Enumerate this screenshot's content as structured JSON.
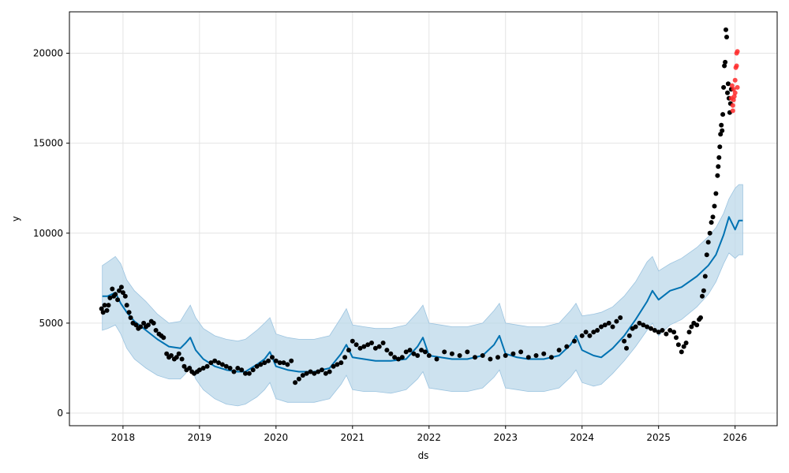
{
  "chart_data": {
    "type": "scatter",
    "xlabel": "ds",
    "ylabel": "y",
    "x_ticks": [
      "2018",
      "2019",
      "2020",
      "2021",
      "2022",
      "2023",
      "2024",
      "2025",
      "2026"
    ],
    "y_ticks": [
      "0",
      "5000",
      "10000",
      "15000",
      "20000"
    ],
    "xlim": [
      2017.3,
      2026.55
    ],
    "ylim": [
      -700,
      22300
    ],
    "grid": true,
    "colors": {
      "observed": "#000000",
      "holdout": "#ff2a2a",
      "forecast_line": "#0072b2",
      "interval_fill": "#bcd8ea",
      "interval_edge": "#9cc4e0",
      "grid": "#e4e4e4",
      "axis": "#000000"
    },
    "series": [
      {
        "role": "forecast",
        "x": [
          2017.73,
          2017.8,
          2017.9,
          2017.97,
          2018.05,
          2018.15,
          2018.3,
          2018.45,
          2018.6,
          2018.75,
          2018.82,
          2018.88,
          2018.95,
          2019.05,
          2019.2,
          2019.35,
          2019.5,
          2019.6,
          2019.75,
          2019.85,
          2019.92,
          2020.0,
          2020.15,
          2020.3,
          2020.5,
          2020.7,
          2020.85,
          2020.92,
          2021.0,
          2021.15,
          2021.3,
          2021.5,
          2021.7,
          2021.85,
          2021.92,
          2022.0,
          2022.15,
          2022.3,
          2022.5,
          2022.7,
          2022.85,
          2022.92,
          2023.0,
          2023.15,
          2023.3,
          2023.5,
          2023.7,
          2023.85,
          2023.92,
          2024.0,
          2024.15,
          2024.25,
          2024.4,
          2024.55,
          2024.7,
          2024.85,
          2024.92,
          2025.0,
          2025.15,
          2025.3,
          2025.5,
          2025.65,
          2025.75,
          2025.85,
          2025.92,
          2026.0,
          2026.05,
          2026.1
        ],
        "upper": [
          8200,
          8400,
          8700,
          8300,
          7400,
          6800,
          6200,
          5500,
          5000,
          5100,
          5600,
          6000,
          5300,
          4700,
          4300,
          4100,
          4000,
          4100,
          4600,
          5000,
          5300,
          4400,
          4200,
          4100,
          4100,
          4300,
          5300,
          5800,
          4900,
          4800,
          4700,
          4700,
          4900,
          5600,
          6000,
          5000,
          4900,
          4800,
          4800,
          5000,
          5700,
          6100,
          5000,
          4900,
          4800,
          4800,
          5000,
          5700,
          6100,
          5400,
          5500,
          5600,
          5900,
          6500,
          7300,
          8400,
          8700,
          7900,
          8300,
          8600,
          9200,
          9800,
          10300,
          11100,
          11900,
          12500,
          12700,
          12700
        ],
        "lower": [
          4600,
          4700,
          4900,
          4400,
          3600,
          3000,
          2500,
          2100,
          1900,
          1900,
          2200,
          2700,
          1900,
          1300,
          800,
          500,
          400,
          500,
          900,
          1300,
          1700,
          800,
          600,
          600,
          600,
          800,
          1600,
          2100,
          1300,
          1200,
          1200,
          1100,
          1300,
          1900,
          2300,
          1400,
          1300,
          1200,
          1200,
          1400,
          2000,
          2400,
          1400,
          1300,
          1200,
          1200,
          1400,
          2000,
          2400,
          1700,
          1500,
          1600,
          2200,
          2900,
          3700,
          4600,
          5000,
          4300,
          4900,
          5200,
          5900,
          6600,
          7300,
          8300,
          8900,
          8600,
          8800,
          8800
        ],
        "yhat": [
          6500,
          6500,
          6700,
          6100,
          5600,
          5100,
          4600,
          4100,
          3700,
          3600,
          3900,
          4200,
          3500,
          3000,
          2600,
          2400,
          2300,
          2300,
          2700,
          3000,
          3400,
          2600,
          2400,
          2300,
          2300,
          2500,
          3300,
          3800,
          3100,
          3000,
          2900,
          2900,
          3000,
          3700,
          4200,
          3200,
          3100,
          3000,
          3000,
          3200,
          3800,
          4300,
          3300,
          3100,
          3000,
          3000,
          3200,
          3800,
          4300,
          3500,
          3200,
          3100,
          3600,
          4300,
          5200,
          6200,
          6800,
          6300,
          6800,
          7000,
          7600,
          8200,
          8800,
          9900,
          10900,
          10200,
          10700,
          10700
        ]
      },
      {
        "name": "observed",
        "role": "observed",
        "x": [
          2017.72,
          2017.74,
          2017.76,
          2017.79,
          2017.81,
          2017.83,
          2017.86,
          2017.88,
          2017.9,
          2017.93,
          2017.95,
          2017.98,
          2018.0,
          2018.03,
          2018.05,
          2018.08,
          2018.1,
          2018.13,
          2018.17,
          2018.2,
          2018.23,
          2018.27,
          2018.3,
          2018.33,
          2018.37,
          2018.4,
          2018.43,
          2018.47,
          2018.5,
          2018.53,
          2018.57,
          2018.6,
          2018.63,
          2018.67,
          2018.7,
          2018.73,
          2018.77,
          2018.8,
          2018.83,
          2018.87,
          2018.9,
          2018.93,
          2018.97,
          2019.0,
          2019.05,
          2019.1,
          2019.15,
          2019.2,
          2019.25,
          2019.3,
          2019.35,
          2019.4,
          2019.45,
          2019.5,
          2019.55,
          2019.6,
          2019.65,
          2019.7,
          2019.75,
          2019.8,
          2019.85,
          2019.9,
          2019.95,
          2020.0,
          2020.05,
          2020.1,
          2020.15,
          2020.2,
          2020.25,
          2020.3,
          2020.35,
          2020.4,
          2020.45,
          2020.5,
          2020.55,
          2020.6,
          2020.65,
          2020.7,
          2020.75,
          2020.8,
          2020.85,
          2020.9,
          2020.95,
          2021.0,
          2021.05,
          2021.1,
          2021.15,
          2021.2,
          2021.25,
          2021.3,
          2021.35,
          2021.4,
          2021.45,
          2021.5,
          2021.55,
          2021.6,
          2021.65,
          2021.7,
          2021.75,
          2021.8,
          2021.85,
          2021.9,
          2021.95,
          2022.0,
          2022.1,
          2022.2,
          2022.3,
          2022.4,
          2022.5,
          2022.6,
          2022.7,
          2022.8,
          2022.9,
          2023.0,
          2023.1,
          2023.2,
          2023.3,
          2023.4,
          2023.5,
          2023.6,
          2023.7,
          2023.8,
          2023.9,
          2024.0,
          2024.05,
          2024.1,
          2024.15,
          2024.2,
          2024.25,
          2024.3,
          2024.35,
          2024.4,
          2024.45,
          2024.5,
          2024.55,
          2024.58,
          2024.62,
          2024.66,
          2024.7,
          2024.75,
          2024.8,
          2024.85,
          2024.9,
          2024.95,
          2025.0,
          2025.05,
          2025.1,
          2025.15,
          2025.2,
          2025.23,
          2025.26,
          2025.3,
          2025.33,
          2025.36,
          2025.4,
          2025.43,
          2025.46,
          2025.5,
          2025.53,
          2025.55,
          2025.57,
          2025.59,
          2025.61,
          2025.63,
          2025.65,
          2025.67,
          2025.69,
          2025.71,
          2025.73,
          2025.75,
          2025.77,
          2025.78,
          2025.79,
          2025.8,
          2025.81,
          2025.82,
          2025.83,
          2025.84,
          2025.85,
          2025.86,
          2025.87,
          2025.88,
          2025.89,
          2025.9,
          2025.91,
          2025.92,
          2025.93,
          2025.94,
          2025.95
        ],
        "y": [
          5800,
          5600,
          6000,
          5700,
          6000,
          6400,
          6900,
          6500,
          6600,
          6300,
          6800,
          7000,
          6700,
          6500,
          6000,
          5600,
          5300,
          5000,
          4900,
          4700,
          4800,
          5000,
          4800,
          4900,
          5100,
          5000,
          4600,
          4400,
          4300,
          4200,
          3300,
          3100,
          3200,
          3000,
          3100,
          3300,
          3000,
          2600,
          2400,
          2500,
          2300,
          2200,
          2300,
          2400,
          2500,
          2600,
          2800,
          2900,
          2800,
          2700,
          2600,
          2500,
          2300,
          2500,
          2400,
          2200,
          2200,
          2400,
          2600,
          2700,
          2800,
          2900,
          3100,
          2900,
          2800,
          2800,
          2700,
          2900,
          1700,
          1900,
          2100,
          2200,
          2300,
          2200,
          2300,
          2400,
          2200,
          2300,
          2600,
          2700,
          2800,
          3100,
          3500,
          4000,
          3800,
          3600,
          3700,
          3800,
          3900,
          3600,
          3700,
          3900,
          3500,
          3300,
          3100,
          3000,
          3100,
          3400,
          3500,
          3300,
          3200,
          3500,
          3400,
          3200,
          3000,
          3400,
          3300,
          3200,
          3400,
          3100,
          3200,
          3000,
          3100,
          3200,
          3300,
          3400,
          3100,
          3200,
          3300,
          3100,
          3500,
          3700,
          4000,
          4300,
          4500,
          4300,
          4500,
          4600,
          4800,
          4900,
          5000,
          4800,
          5100,
          5300,
          4000,
          3600,
          4300,
          4700,
          4800,
          5000,
          4900,
          4800,
          4700,
          4600,
          4500,
          4600,
          4400,
          4600,
          4500,
          4200,
          3800,
          3400,
          3700,
          3900,
          4500,
          4800,
          5000,
          4900,
          5200,
          5300,
          6500,
          6800,
          7600,
          8800,
          9500,
          10000,
          10600,
          10900,
          11500,
          12200,
          13200,
          13700,
          14200,
          14800,
          15500,
          16000,
          15700,
          16600,
          18100,
          19300,
          19500,
          21300,
          20900,
          17800,
          18300,
          17500,
          16700,
          17200,
          18000
        ]
      },
      {
        "name": "holdout",
        "role": "holdout",
        "x": [
          2025.95,
          2025.96,
          2025.97,
          2025.97,
          2025.98,
          2025.98,
          2025.99,
          2026.0,
          2026.0,
          2026.01,
          2026.02,
          2026.02,
          2026.03,
          2026.03
        ],
        "y": [
          17500,
          18200,
          17100,
          16800,
          17400,
          18000,
          17600,
          17800,
          18500,
          19200,
          19300,
          20000,
          20100,
          18100
        ]
      }
    ]
  }
}
